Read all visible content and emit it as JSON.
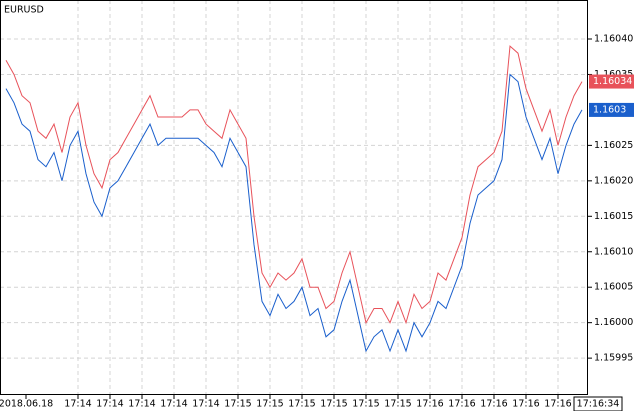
{
  "chart_data": {
    "type": "line",
    "title": "EURUSD",
    "xlim": [
      -0.75,
      72.75
    ],
    "xticks": [
      {
        "value": 2.5,
        "label": "2018.06.18"
      },
      {
        "value": 9,
        "label": "17:14"
      },
      {
        "value": 13,
        "label": "17:14"
      },
      {
        "value": 17,
        "label": "17:14"
      },
      {
        "value": 21,
        "label": "17:14"
      },
      {
        "value": 25,
        "label": "17:14"
      },
      {
        "value": 29,
        "label": "17:15"
      },
      {
        "value": 33,
        "label": "17:15"
      },
      {
        "value": 37,
        "label": "17:15"
      },
      {
        "value": 41,
        "label": "17:15"
      },
      {
        "value": 45,
        "label": "17:15"
      },
      {
        "value": 49,
        "label": "17:15"
      },
      {
        "value": 53,
        "label": "17:16"
      },
      {
        "value": 57,
        "label": "17:16"
      },
      {
        "value": 61,
        "label": "17:16"
      },
      {
        "value": 65,
        "label": "17:16"
      },
      {
        "value": 69,
        "label": "17:16"
      },
      {
        "value": 74,
        "label": "17:16:34"
      }
    ],
    "ylim": [
      1.159898,
      1.160455
    ],
    "yticks": [
      {
        "value": 1.1604,
        "label": "1.16040"
      },
      {
        "value": 1.16035,
        "label": "1.16035"
      },
      {
        "value": 1.16025,
        "label": "1.16025"
      },
      {
        "value": 1.1602,
        "label": "1.16020"
      },
      {
        "value": 1.16015,
        "label": "1.16015"
      },
      {
        "value": 1.1601,
        "label": "1.16010"
      },
      {
        "value": 1.16005,
        "label": "1.16005"
      },
      {
        "value": 1.16,
        "label": "1.16000"
      },
      {
        "value": 1.15995,
        "label": "1.15995"
      }
    ],
    "grid": true,
    "series": [
      {
        "color": "#e8525a",
        "values": [
          1.16037,
          1.16035,
          1.16032,
          1.16031,
          1.16027,
          1.16026,
          1.16028,
          1.16024,
          1.16029,
          1.16031,
          1.16025,
          1.16021,
          1.16019,
          1.16023,
          1.16024,
          1.16026,
          1.16028,
          1.1603,
          1.16032,
          1.16029,
          1.16029,
          1.16029,
          1.16029,
          1.1603,
          1.1603,
          1.16028,
          1.16027,
          1.16026,
          1.1603,
          1.16028,
          1.16026,
          1.16015,
          1.16007,
          1.16005,
          1.16007,
          1.16006,
          1.16007,
          1.16009,
          1.16005,
          1.16005,
          1.16002,
          1.16003,
          1.16007,
          1.1601,
          1.16005,
          1.16,
          1.16002,
          1.16002,
          1.16,
          1.16003,
          1.16,
          1.16004,
          1.16002,
          1.16003,
          1.16007,
          1.16006,
          1.16009,
          1.16012,
          1.16018,
          1.16022,
          1.16023,
          1.16024,
          1.16027,
          1.16039,
          1.16038,
          1.16033,
          1.1603,
          1.16027,
          1.1603,
          1.16025,
          1.16029,
          1.16032,
          1.16034
        ]
      },
      {
        "color": "#1a5fcc",
        "values": [
          1.16033,
          1.16031,
          1.16028,
          1.16027,
          1.16023,
          1.16022,
          1.16024,
          1.1602,
          1.16025,
          1.16027,
          1.16021,
          1.16017,
          1.16015,
          1.16019,
          1.1602,
          1.16022,
          1.16024,
          1.16026,
          1.16028,
          1.16025,
          1.16026,
          1.16026,
          1.16026,
          1.16026,
          1.16026,
          1.16025,
          1.16024,
          1.16022,
          1.16026,
          1.16024,
          1.16022,
          1.16011,
          1.16003,
          1.16001,
          1.16004,
          1.16002,
          1.16003,
          1.16005,
          1.16001,
          1.16002,
          1.15998,
          1.15999,
          1.16003,
          1.16006,
          1.16001,
          1.15996,
          1.15998,
          1.15999,
          1.15996,
          1.15999,
          1.15996,
          1.16,
          1.15998,
          1.16,
          1.16003,
          1.16002,
          1.16005,
          1.16008,
          1.16014,
          1.16018,
          1.16019,
          1.1602,
          1.16023,
          1.16035,
          1.16034,
          1.16029,
          1.16026,
          1.16023,
          1.16026,
          1.16021,
          1.16025,
          1.16028,
          1.1603
        ]
      }
    ]
  }
}
